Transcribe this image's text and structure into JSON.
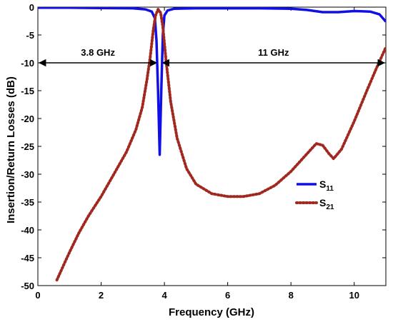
{
  "chart_data": {
    "type": "line",
    "xlabel": "Frequency (GHz)",
    "ylabel": "Insertion/Return Losses (dB)",
    "xlim": [
      0,
      11
    ],
    "ylim": [
      -50,
      0
    ],
    "xticks": [
      0,
      2,
      4,
      6,
      8,
      10
    ],
    "yticks": [
      0,
      -5,
      -10,
      -15,
      -20,
      -25,
      -30,
      -35,
      -40,
      -45,
      -50
    ],
    "grid": false,
    "legend_position": "center-right",
    "series": [
      {
        "name": "S11",
        "label_main": "S",
        "label_sub": "11",
        "color": "#1010e6",
        "style": "solid",
        "x": [
          0,
          1,
          2,
          3,
          3.4,
          3.6,
          3.7,
          3.75,
          3.8,
          3.85,
          3.9,
          3.95,
          4.0,
          4.1,
          4.3,
          5,
          6,
          7,
          8,
          8.5,
          9,
          9.5,
          10,
          10.5,
          10.8,
          11
        ],
        "y": [
          -0.1,
          -0.1,
          -0.15,
          -0.2,
          -0.4,
          -0.8,
          -2,
          -6,
          -15,
          -26.5,
          -15,
          -5,
          -1.5,
          -0.6,
          -0.3,
          -0.2,
          -0.2,
          -0.2,
          -0.3,
          -0.5,
          -0.9,
          -0.9,
          -0.7,
          -0.8,
          -1.3,
          -2.6
        ]
      },
      {
        "name": "S21",
        "label_main": "S",
        "label_sub": "21",
        "color": "#a0281e",
        "style": "dotted",
        "x": [
          0.6,
          0.8,
          1.0,
          1.3,
          1.6,
          2.0,
          2.4,
          2.8,
          3.1,
          3.3,
          3.45,
          3.55,
          3.65,
          3.72,
          3.8,
          3.88,
          3.95,
          4.05,
          4.2,
          4.4,
          4.7,
          5.0,
          5.5,
          6.0,
          6.5,
          7.0,
          7.5,
          8.0,
          8.4,
          8.8,
          9.0,
          9.2,
          9.35,
          9.6,
          10.0,
          10.4,
          10.7,
          11.0
        ],
        "y": [
          -49,
          -46.5,
          -44,
          -40.5,
          -37.5,
          -34,
          -30,
          -26,
          -22,
          -18,
          -13,
          -9,
          -4,
          -1.5,
          -0.4,
          -1,
          -3.5,
          -9.5,
          -17,
          -23.5,
          -29,
          -31.8,
          -33.5,
          -34,
          -34,
          -33.5,
          -32,
          -29.5,
          -27,
          -24.5,
          -24.8,
          -26.3,
          -27.2,
          -25.5,
          -20.5,
          -15,
          -11,
          -7.2
        ]
      }
    ],
    "annotations": [
      {
        "text": "3.8 GHz",
        "x_start": 0,
        "x_end": 3.8,
        "y": -10
      },
      {
        "text": "11 GHz",
        "x_start": 3.9,
        "x_end": 11,
        "y": -10
      }
    ]
  }
}
